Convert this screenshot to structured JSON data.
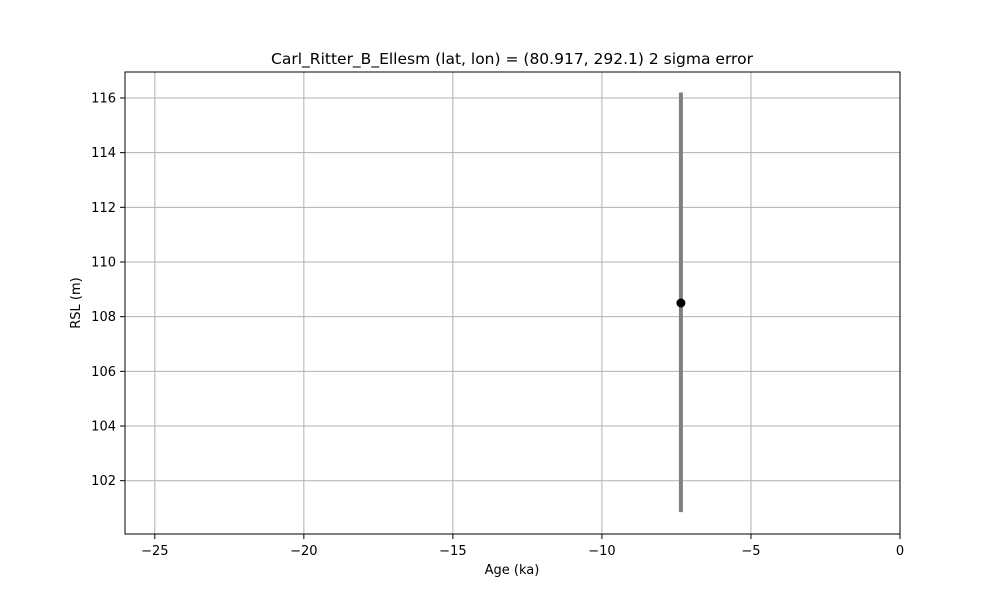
{
  "chart_data": {
    "type": "scatter",
    "title": "Carl_Ritter_B_Ellesm (lat, lon) = (80.917, 292.1)  2 sigma error",
    "xlabel": "Age (ka)",
    "ylabel": "RSL (m)",
    "xlim": [
      -26,
      0
    ],
    "ylim": [
      100.05,
      116.95
    ],
    "xticks": [
      -25,
      -20,
      -15,
      -10,
      -5,
      0
    ],
    "xtick_labels": [
      "−25",
      "−20",
      "−15",
      "−10",
      "−5",
      "0"
    ],
    "yticks": [
      102,
      104,
      106,
      108,
      110,
      112,
      114,
      116
    ],
    "ytick_labels": [
      "102",
      "104",
      "106",
      "108",
      "110",
      "112",
      "114",
      "116"
    ],
    "grid": true,
    "points": [
      {
        "x": -7.35,
        "y": 108.5,
        "y_lower": 100.85,
        "y_upper": 116.2
      }
    ],
    "colors": {
      "errorbar": "#808080",
      "marker": "#000000",
      "grid": "#b0b0b0"
    }
  }
}
